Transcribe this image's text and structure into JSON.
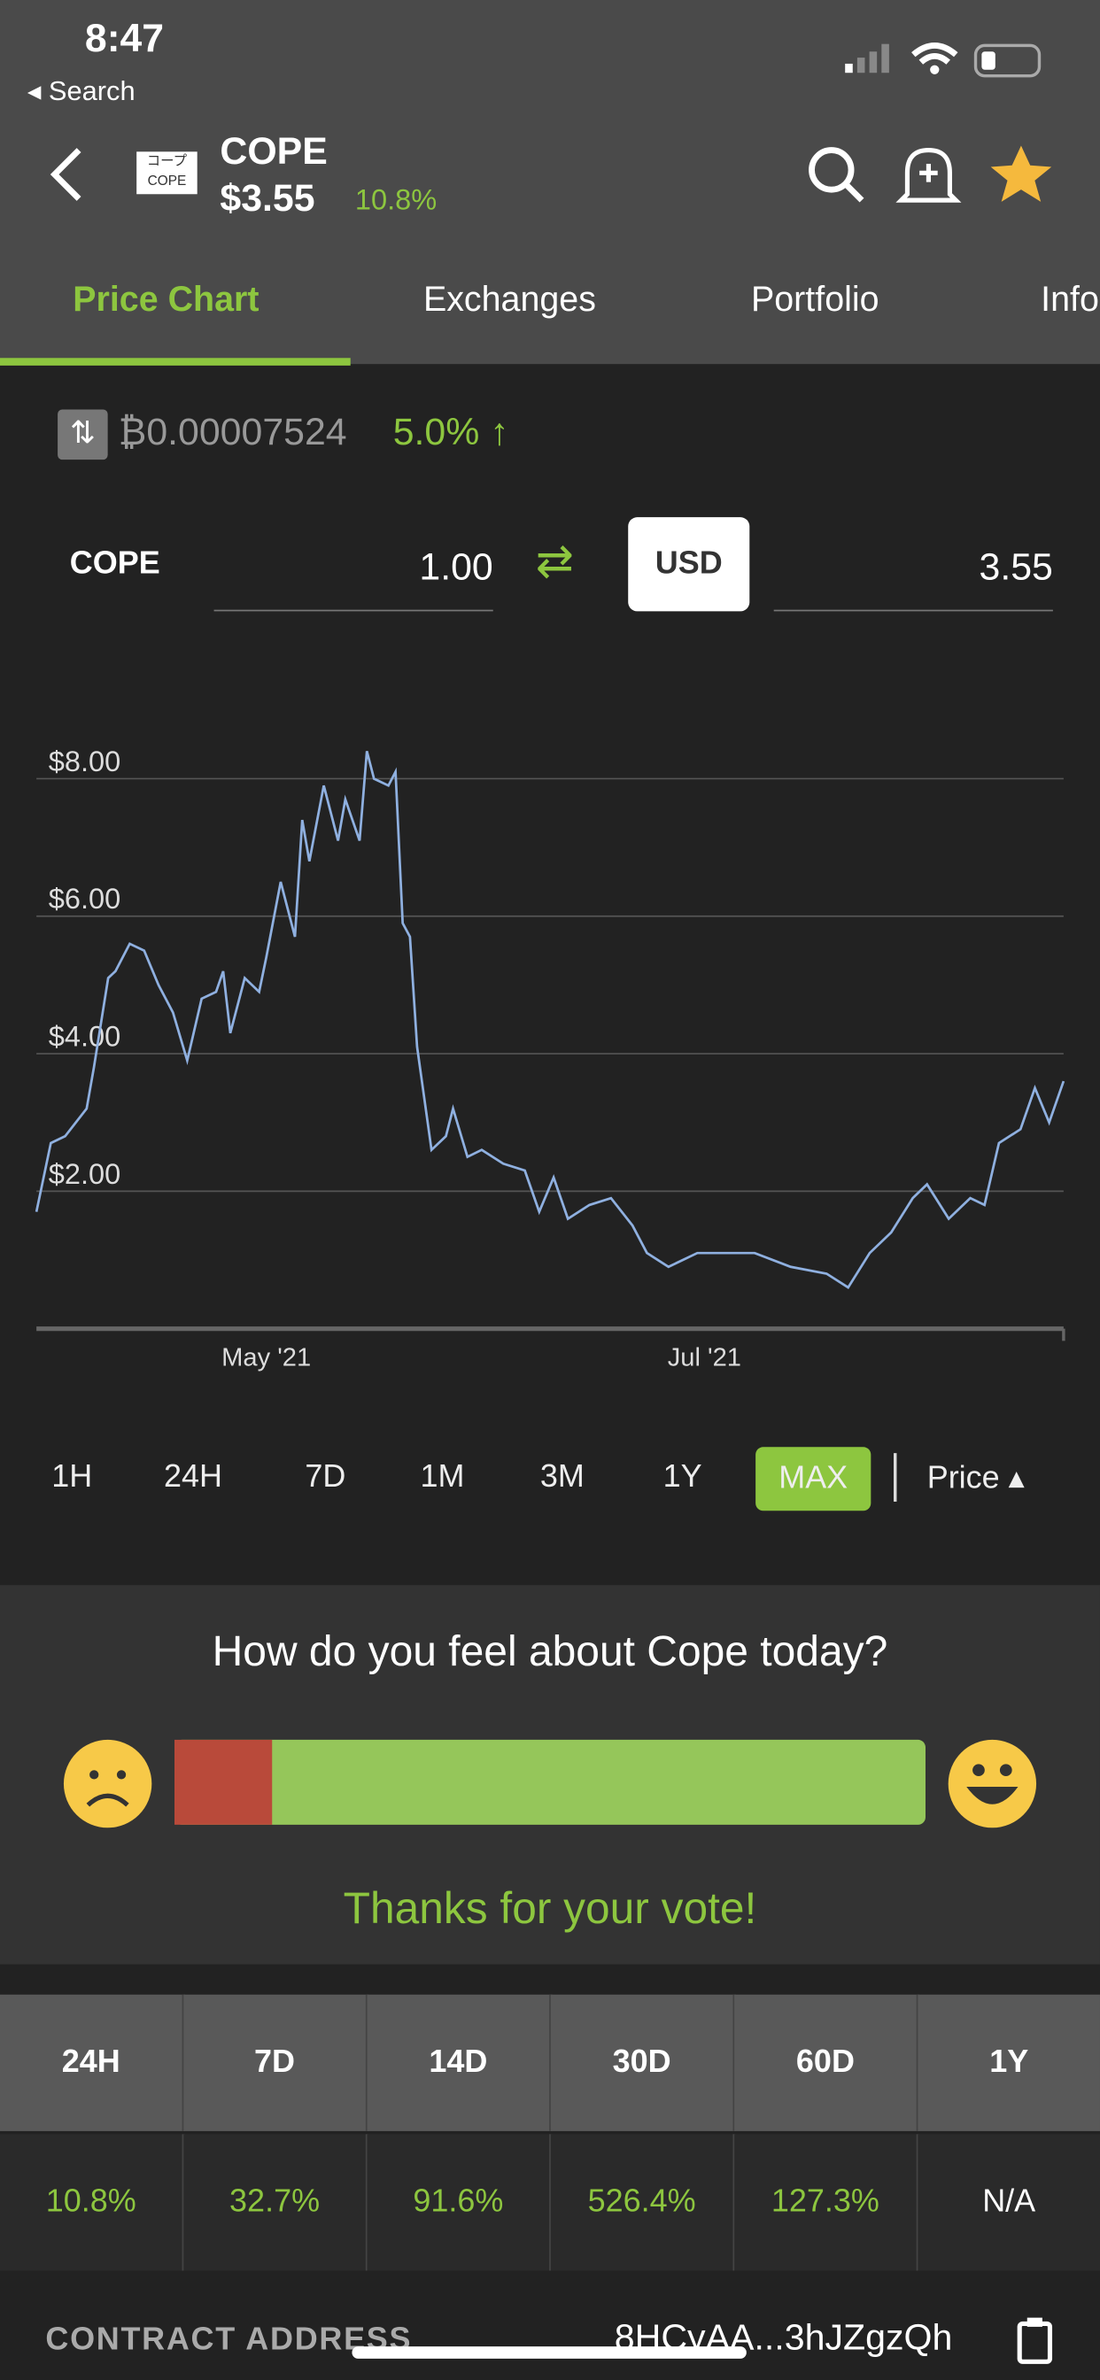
{
  "status_bar": {
    "time": "8:47",
    "back_label": "Search"
  },
  "header": {
    "name": "COPE",
    "price": "$3.55",
    "change": "10.8%"
  },
  "tabs": [
    "Price Chart",
    "Exchanges",
    "Portfolio",
    "Info"
  ],
  "btc_quote": {
    "price": "₿0.00007524",
    "change": "5.0%"
  },
  "converter": {
    "from_symbol": "COPE",
    "from_amount": "1.00",
    "to_symbol": "USD",
    "to_amount": "3.55"
  },
  "chart_data": {
    "type": "line",
    "color": "#8fb0e0",
    "x": [
      89,
      91,
      93,
      96,
      97,
      99,
      100,
      102,
      104,
      106,
      108,
      110,
      112,
      114,
      115,
      116,
      118,
      120,
      121,
      123,
      125,
      126,
      127,
      129,
      131,
      132,
      134,
      135,
      136,
      138,
      139,
      140,
      141,
      142,
      144,
      146,
      147,
      149,
      151,
      154,
      157,
      159,
      161,
      163,
      166,
      169,
      172,
      174,
      177,
      181,
      185,
      189,
      194,
      199,
      202,
      205,
      208,
      211,
      213,
      216,
      219,
      221,
      223,
      226,
      228,
      230,
      232
    ],
    "values": [
      1.7,
      2.7,
      2.8,
      3.2,
      3.8,
      5.1,
      5.2,
      5.6,
      5.5,
      5.0,
      4.6,
      3.9,
      4.8,
      4.9,
      5.2,
      4.3,
      5.1,
      4.9,
      5.4,
      6.5,
      5.7,
      7.4,
      6.8,
      7.9,
      7.1,
      7.7,
      7.1,
      8.4,
      8.0,
      7.9,
      8.1,
      5.9,
      5.7,
      4.1,
      2.6,
      2.8,
      3.2,
      2.5,
      2.6,
      2.4,
      2.3,
      1.7,
      2.2,
      1.6,
      1.8,
      1.9,
      1.5,
      1.1,
      0.9,
      1.1,
      1.1,
      1.1,
      0.9,
      0.8,
      0.6,
      1.1,
      1.4,
      1.9,
      2.1,
      1.6,
      1.9,
      1.8,
      2.7,
      2.9,
      3.5,
      3.0,
      3.6
    ],
    "xlim": [
      89,
      232
    ],
    "ylim": [
      0,
      8.8
    ],
    "xticks": [
      {
        "value": 121,
        "label": "May '21"
      },
      {
        "value": 182,
        "label": "Jul '21"
      }
    ],
    "yticks": [
      {
        "value": 2,
        "label": "$2.00"
      },
      {
        "value": 4,
        "label": "$4.00"
      },
      {
        "value": 6,
        "label": "$6.00"
      },
      {
        "value": 8,
        "label": "$8.00"
      }
    ],
    "grid": true
  },
  "ranges": [
    "1H",
    "24H",
    "7D",
    "1M",
    "3M",
    "1Y",
    "MAX"
  ],
  "metric_toggle": "Price",
  "sentiment": {
    "question": "How do you feel about Cope today?",
    "bearish_percent": 13,
    "thanks": "Thanks for your vote!"
  },
  "performance": {
    "periods": [
      "24H",
      "7D",
      "14D",
      "30D",
      "60D",
      "1Y"
    ],
    "changes": [
      "10.8%",
      "32.7%",
      "91.6%",
      "526.4%",
      "127.3%",
      "N/A"
    ]
  },
  "contract": {
    "label": "CONTRACT ADDRESS",
    "value": "8HCyAA...3hJZgzQh"
  }
}
